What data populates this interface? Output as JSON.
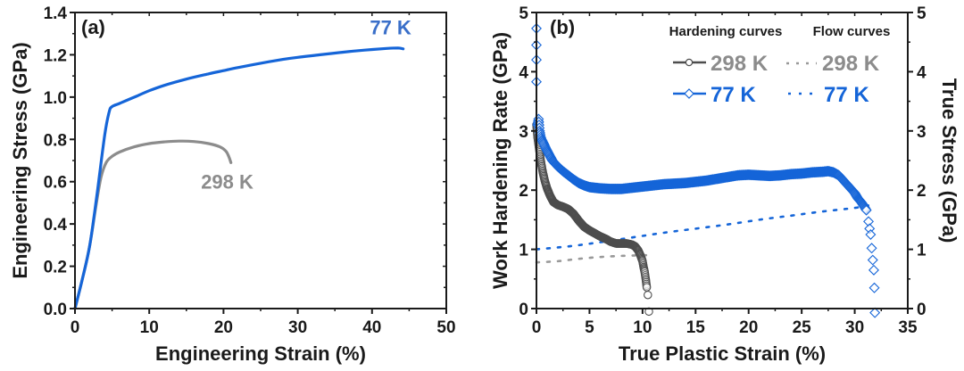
{
  "chart_data": [
    {
      "id": "a",
      "type": "line",
      "panel_label": "(a)",
      "title": "",
      "xlabel": "Engineering Strain (%)",
      "ylabel": "Engineering Stress (GPa)",
      "xlim": [
        0,
        50
      ],
      "ylim": [
        0,
        1.4
      ],
      "xticks": [
        0,
        10,
        20,
        30,
        40,
        50
      ],
      "xtick_labels": [
        "0",
        "10",
        "20",
        "30",
        "40",
        "50"
      ],
      "yticks": [
        0,
        0.2,
        0.4,
        0.6,
        0.8,
        1.0,
        1.2,
        1.4
      ],
      "ytick_labels": [
        "0.0",
        "0.2",
        "0.4",
        "0.6",
        "0.8",
        "1.0",
        "1.2",
        "1.4"
      ],
      "grid": false,
      "series": [
        {
          "name": "77 K",
          "color": "#1565d8",
          "label_color": "#3a6fc9",
          "x": [
            0,
            1,
            2,
            3,
            4,
            4.6,
            5,
            6,
            8,
            10,
            12,
            15,
            18,
            20,
            22,
            25,
            28,
            30,
            33,
            36,
            39,
            42,
            43.5,
            44.2
          ],
          "y": [
            0,
            0.14,
            0.3,
            0.55,
            0.82,
            0.93,
            0.955,
            0.97,
            1.0,
            1.03,
            1.055,
            1.085,
            1.11,
            1.125,
            1.14,
            1.16,
            1.178,
            1.188,
            1.2,
            1.212,
            1.222,
            1.23,
            1.232,
            1.228
          ]
        },
        {
          "name": "298 K",
          "color": "#8c8c8c",
          "label_color": "#8c8c8c",
          "x": [
            0,
            1,
            2,
            2.8,
            3.5,
            4.2,
            5,
            6,
            8,
            10,
            12,
            14,
            16,
            18,
            19.5,
            20.3,
            20.7,
            21
          ],
          "y": [
            0,
            0.14,
            0.3,
            0.48,
            0.62,
            0.69,
            0.72,
            0.74,
            0.765,
            0.78,
            0.788,
            0.792,
            0.79,
            0.78,
            0.765,
            0.745,
            0.72,
            0.69
          ]
        }
      ],
      "annotations": [
        {
          "text": "77 K",
          "x": 42.5,
          "y": 1.33,
          "color": "#3a6fc9"
        },
        {
          "text": "298 K",
          "x": 20.5,
          "y": 0.6,
          "color": "#8c8c8c"
        }
      ]
    },
    {
      "id": "b",
      "type": "scatter",
      "panel_label": "(b)",
      "title": "",
      "xlabel": "True Plastic Strain (%)",
      "ylabel": "Work Hardening Rate (GPa)",
      "y2label": "True Stress (GPa)",
      "xlim": [
        0,
        35
      ],
      "ylim": [
        0,
        5
      ],
      "y2lim": [
        0,
        5
      ],
      "xticks": [
        0,
        5,
        10,
        15,
        20,
        25,
        30,
        35
      ],
      "xtick_labels": [
        "0",
        "5",
        "10",
        "15",
        "20",
        "25",
        "30",
        "35"
      ],
      "yticks": [
        0,
        1,
        2,
        3,
        4,
        5
      ],
      "ytick_labels": [
        "0",
        "1",
        "2",
        "3",
        "4",
        "5"
      ],
      "y2ticks": [
        0,
        1,
        2,
        3,
        4,
        5
      ],
      "y2tick_labels": [
        "0",
        "1",
        "2",
        "3",
        "4",
        "5"
      ],
      "grid": false,
      "legend": {
        "placement": "top-right",
        "headers": [
          "Hardening curves",
          "Flow curves"
        ],
        "entries": [
          {
            "label": "298 K",
            "kind": "hardening",
            "marker": "circle",
            "color": "#4d4d4d",
            "text_color": "#8c8c8c"
          },
          {
            "label": "298 K",
            "kind": "flow",
            "marker": "dotted",
            "color": "#999999",
            "text_color": "#8c8c8c"
          },
          {
            "label": "77 K",
            "kind": "hardening",
            "marker": "diamond",
            "color": "#1565d8",
            "text_color": "#1565d8"
          },
          {
            "label": "77 K",
            "kind": "flow",
            "marker": "dotted",
            "color": "#1565d8",
            "text_color": "#1565d8"
          }
        ]
      },
      "series": [
        {
          "name": "298 K hardening",
          "marker": "circle",
          "color": "#4d4d4d",
          "x": [
            0,
            0.1,
            0.2,
            0.3,
            0.4,
            0.5,
            0.6,
            0.8,
            1.0,
            1.3,
            1.6,
            2.0,
            2.5,
            3.0,
            3.5,
            4.0,
            4.5,
            5.0,
            5.5,
            6.0,
            6.5,
            7.0,
            7.5,
            8.0,
            8.5,
            9.0,
            9.3,
            9.6,
            9.8,
            10.0,
            10.1,
            10.2,
            10.3,
            10.4,
            10.5,
            10.6
          ],
          "y": [
            3.1,
            2.9,
            2.77,
            2.64,
            2.5,
            2.4,
            2.3,
            2.15,
            2.03,
            1.9,
            1.8,
            1.75,
            1.72,
            1.68,
            1.6,
            1.48,
            1.38,
            1.32,
            1.27,
            1.22,
            1.18,
            1.13,
            1.1,
            1.1,
            1.1,
            1.08,
            1.05,
            0.98,
            0.9,
            0.8,
            0.7,
            0.62,
            0.5,
            0.36,
            0.23,
            -0.05
          ]
        },
        {
          "name": "77 K hardening",
          "marker": "diamond",
          "color": "#1565d8",
          "x": [
            0,
            0,
            0,
            0,
            0.1,
            0.2,
            0.3,
            0.4,
            0.5,
            0.7,
            0.9,
            1.2,
            1.5,
            2,
            2.5,
            3,
            3.5,
            4,
            4.5,
            5,
            5.5,
            6,
            7,
            8,
            9,
            10,
            11,
            12,
            13,
            14,
            15,
            16,
            17,
            18,
            19,
            20,
            21,
            22,
            23,
            24,
            25,
            26,
            27,
            27.5,
            28,
            28.5,
            29,
            29.5,
            30,
            30.3,
            30.6,
            30.9,
            31.1,
            31.3,
            31.4,
            31.5,
            31.6,
            31.7,
            31.8,
            31.85,
            31.9
          ],
          "y": [
            4.73,
            4.45,
            4.2,
            3.83,
            3.1,
            3.2,
            3.0,
            2.9,
            2.85,
            2.78,
            2.7,
            2.6,
            2.5,
            2.4,
            2.32,
            2.25,
            2.18,
            2.12,
            2.08,
            2.05,
            2.04,
            2.03,
            2.02,
            2.02,
            2.04,
            2.06,
            2.08,
            2.1,
            2.11,
            2.12,
            2.14,
            2.16,
            2.19,
            2.22,
            2.25,
            2.26,
            2.25,
            2.24,
            2.25,
            2.27,
            2.28,
            2.3,
            2.31,
            2.32,
            2.3,
            2.25,
            2.15,
            2.05,
            1.95,
            1.86,
            1.8,
            1.72,
            1.66,
            1.47,
            1.35,
            1.25,
            1.02,
            0.82,
            0.65,
            0.35,
            -0.07
          ]
        },
        {
          "name": "298 K flow",
          "marker": "dotted",
          "color": "#999999",
          "axis": "right",
          "x": [
            0,
            2,
            4,
            6,
            8,
            10,
            10.5
          ],
          "y": [
            0.78,
            0.8,
            0.84,
            0.87,
            0.89,
            0.9,
            0.9
          ]
        },
        {
          "name": "77 K flow",
          "marker": "dotted",
          "color": "#1565d8",
          "axis": "right",
          "x": [
            0,
            3,
            6,
            9,
            12,
            15,
            18,
            21,
            24,
            27,
            30,
            31.5
          ],
          "y": [
            1.0,
            1.05,
            1.12,
            1.2,
            1.28,
            1.35,
            1.42,
            1.5,
            1.57,
            1.64,
            1.7,
            1.75
          ]
        }
      ]
    }
  ]
}
